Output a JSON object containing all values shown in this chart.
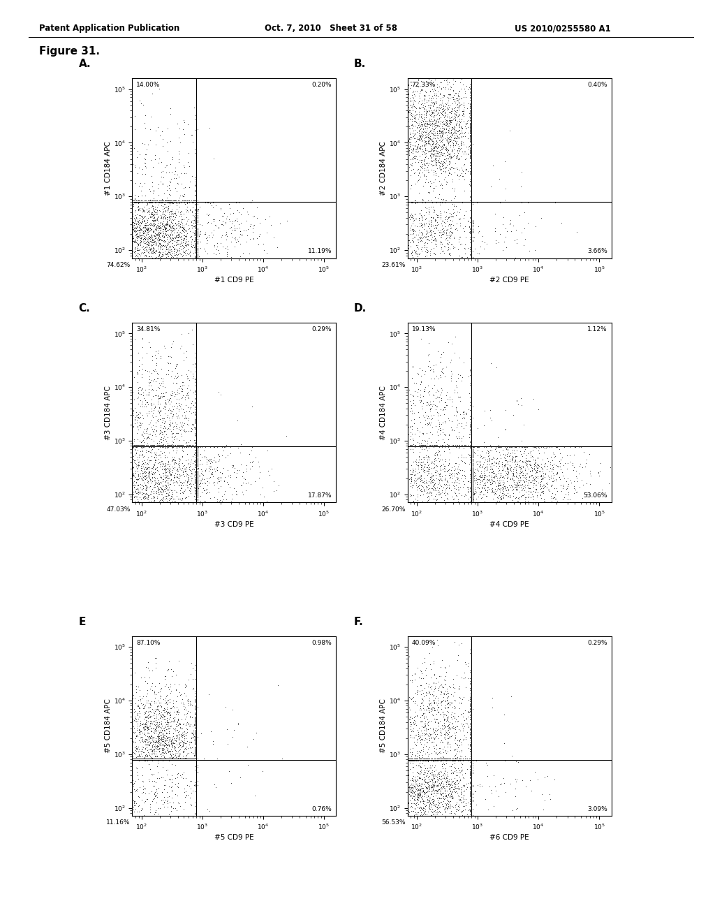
{
  "header_left": "Patent Application Publication",
  "header_mid": "Oct. 7, 2010   Sheet 31 of 58",
  "header_right": "US 2010/0255580 A1",
  "figure_label": "Figure 31.",
  "panels": [
    {
      "label": "A.",
      "xlabel": "#1 CD9 PE",
      "ylabel": "#1 CD184 APC",
      "quadrant_labels": [
        "14.00%",
        "0.20%",
        "74.62%",
        "11.19%"
      ],
      "seed": 42,
      "cluster_ul": [
        2.3,
        3.2,
        0.5,
        0.7
      ],
      "cluster_ll": [
        2.2,
        2.3,
        0.45,
        0.35
      ],
      "cluster_lr": [
        3.2,
        2.3,
        0.5,
        0.35
      ]
    },
    {
      "label": "B.",
      "xlabel": "#2 CD9 PE",
      "ylabel": "#2 CD184 APC",
      "quadrant_labels": [
        "72.33%",
        "0.40%",
        "23.61%",
        "3.66%"
      ],
      "seed": 43,
      "cluster_ul": [
        2.3,
        4.2,
        0.4,
        0.5
      ],
      "cluster_ll": [
        2.2,
        2.3,
        0.4,
        0.3
      ],
      "cluster_lr": [
        3.2,
        2.3,
        0.5,
        0.35
      ]
    },
    {
      "label": "C.",
      "xlabel": "#3 CD9 PE",
      "ylabel": "#3 CD184 APC",
      "quadrant_labels": [
        "34.81%",
        "0.29%",
        "47.03%",
        "17.87%"
      ],
      "seed": 44,
      "cluster_ul": [
        2.3,
        3.5,
        0.45,
        0.6
      ],
      "cluster_ll": [
        2.2,
        2.3,
        0.45,
        0.35
      ],
      "cluster_lr": [
        3.0,
        2.3,
        0.5,
        0.35
      ]
    },
    {
      "label": "D.",
      "xlabel": "#4 CD9 PE",
      "ylabel": "#4 CD184 APC",
      "quadrant_labels": [
        "19.13%",
        "1.12%",
        "26.70%",
        "53.06%"
      ],
      "seed": 45,
      "cluster_ul": [
        2.3,
        3.5,
        0.4,
        0.6
      ],
      "cluster_ll": [
        2.2,
        2.3,
        0.4,
        0.3
      ],
      "cluster_lr": [
        3.5,
        2.3,
        0.6,
        0.35
      ]
    },
    {
      "label": "E",
      "xlabel": "#5 CD9 PE",
      "ylabel": "#5 CD184 APC",
      "quadrant_labels": [
        "87.10%",
        "0.98%",
        "11.16%",
        "0.76%"
      ],
      "seed": 46,
      "cluster_ul": [
        2.3,
        3.1,
        0.4,
        0.6
      ],
      "cluster_ll": [
        2.2,
        2.3,
        0.4,
        0.3
      ],
      "cluster_lr": [
        3.2,
        2.3,
        0.5,
        0.35
      ]
    },
    {
      "label": "F.",
      "xlabel": "#6 CD9 PE",
      "ylabel": "#5 CD184 APC",
      "quadrant_labels": [
        "40.09%",
        "0.29%",
        "56.53%",
        "3.09%"
      ],
      "seed": 47,
      "cluster_ul": [
        2.3,
        3.5,
        0.4,
        0.6
      ],
      "cluster_ll": [
        2.2,
        2.3,
        0.45,
        0.35
      ],
      "cluster_lr": [
        3.2,
        2.3,
        0.5,
        0.35
      ]
    }
  ],
  "xlog_range": [
    1.85,
    5.2
  ],
  "ylog_range": [
    1.85,
    5.2
  ],
  "gate_x": 2.9,
  "gate_y": 2.9,
  "n_points": 2500,
  "dot_size": 0.5,
  "dot_color": "#111111",
  "dot_alpha": 0.7,
  "background_color": "#ffffff",
  "header_fontsize": 8.5,
  "figure_label_fontsize": 11,
  "panel_label_fontsize": 11,
  "quadrant_label_fontsize": 6.5,
  "axis_label_fontsize": 7.5,
  "tick_fontsize": 6.5
}
